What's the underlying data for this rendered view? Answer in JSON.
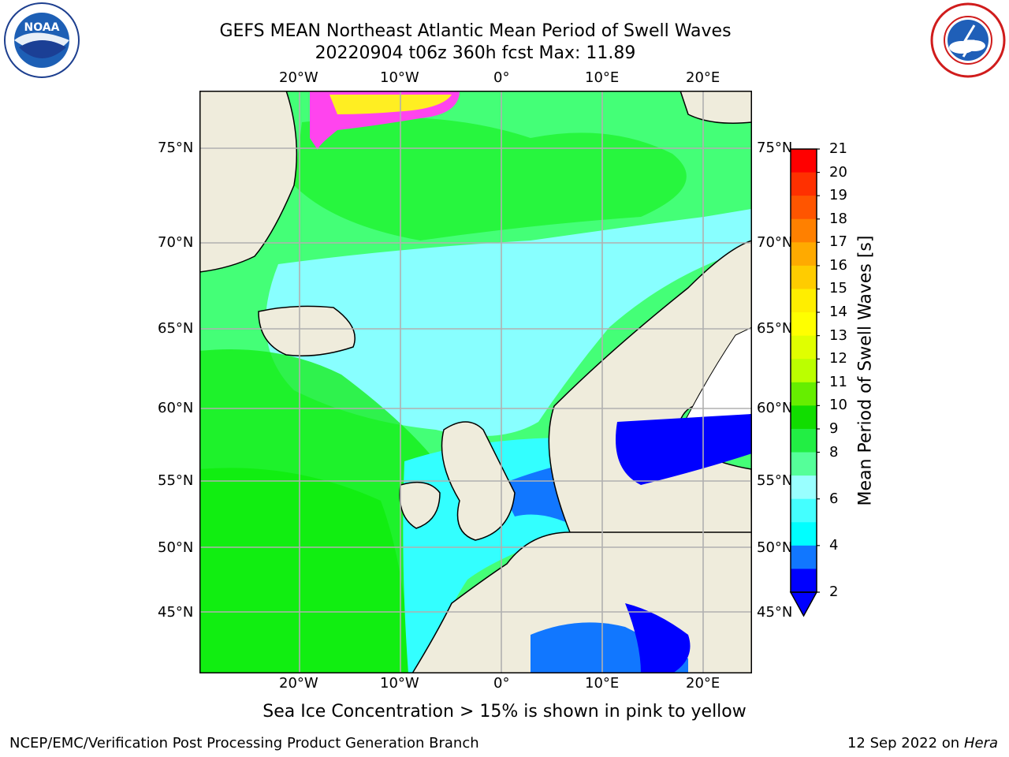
{
  "header": {
    "title_line1": "GEFS MEAN Northeast Atlantic Mean Period of Swell Waves",
    "title_line2": "20220904 t06z 360h fcst   Max: 11.89"
  },
  "map": {
    "lon_labels": [
      "20°W",
      "10°W",
      "0°",
      "10°E",
      "20°E"
    ],
    "lat_labels": [
      "75°N",
      "70°N",
      "65°N",
      "60°N",
      "55°N",
      "50°N",
      "45°N"
    ],
    "colors": {
      "land": "#efecdc",
      "ocean_green": "#44ff77",
      "ocean_dgreen": "#11ee11",
      "ocean_cyan": "#88ffff",
      "ocean_cyan2": "#33ffff",
      "shallow_blue": "#1177ff",
      "deep_blue": "#0000ff",
      "ice_pink": "#ff44ee",
      "ice_yellow": "#ffee22"
    }
  },
  "colorbar": {
    "label": "Mean Period of Swell Waves [s]",
    "ticks": [
      "21",
      "20",
      "19",
      "18",
      "17",
      "16",
      "15",
      "14",
      "13",
      "12",
      "11",
      "10",
      "9",
      "8",
      "6",
      "4",
      "2"
    ],
    "colors": [
      "#ff0000",
      "#ff3000",
      "#ff5500",
      "#ff8000",
      "#ffaa00",
      "#ffcc00",
      "#ffee00",
      "#ffff00",
      "#e0ff00",
      "#bbff00",
      "#66ee00",
      "#11dd00",
      "#22ee44",
      "#55ff99",
      "#99ffff",
      "#44ffff",
      "#00ffff",
      "#1177ff",
      "#0000ff"
    ]
  },
  "note": "Sea Ice Concentration > 15% is shown in pink to yellow",
  "footer": {
    "left": "NCEP/EMC/Verification Post Processing Product Generation Branch",
    "date": "12 Sep 2022 on",
    "host": "Hera"
  },
  "logos": {
    "noaa_text": "NOAA",
    "nws_text": "NATIONAL WEATHER SERVICE"
  }
}
